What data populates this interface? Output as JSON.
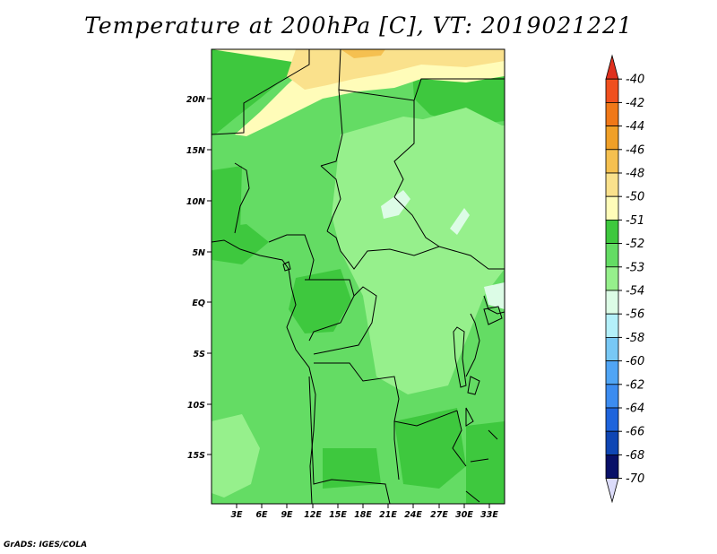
{
  "title": "Temperature at 200hPa [C], VT: 2019021221",
  "credit": "GrADS: IGES/COLA",
  "map": {
    "lon_ticks": [
      "3E",
      "6E",
      "9E",
      "12E",
      "15E",
      "18E",
      "21E",
      "24E",
      "27E",
      "30E",
      "33E"
    ],
    "lat_ticks": [
      "20N",
      "15N",
      "10N",
      "5N",
      "EQ",
      "5S",
      "10S",
      "15S"
    ]
  },
  "colorbar": {
    "levels": [
      "-40",
      "-42",
      "-44",
      "-46",
      "-48",
      "-50",
      "-51",
      "-52",
      "-53",
      "-54",
      "-56",
      "-58",
      "-60",
      "-62",
      "-64",
      "-66",
      "-68",
      "-70"
    ],
    "colors": [
      "#e0301e",
      "#f0501e",
      "#f07818",
      "#f0a028",
      "#f5c050",
      "#fae18c",
      "#fffcb9",
      "#3ec83e",
      "#64dc64",
      "#96f08c",
      "#dcfce6",
      "#b4f0fa",
      "#78c8f5",
      "#50a5f5",
      "#3c8cf0",
      "#1e64dc",
      "#0f46b4",
      "#081068",
      "#dcdcfa"
    ]
  }
}
